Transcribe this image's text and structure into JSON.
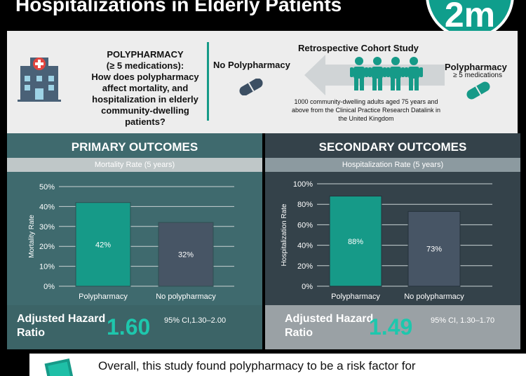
{
  "header": {
    "title": "Hospitalizations in Elderly Patients",
    "logo_text": "2m"
  },
  "intro": {
    "question_heading": "POLYPHARMACY\n(≥ 5 medications):",
    "question_body": "How does polypharmacy affect mortality, and hospitalization in elderly community-dwelling patients?",
    "study_title": "Retrospective Cohort Study",
    "no_poly_label": "No Polypharmacy",
    "poly_label": "Polypharmacy",
    "poly_sublabel": "≥ 5 medications",
    "description": "1000 community-dwelling adults aged 75 years and above from the Clinical Practice Research Datalink in the United Kingdom"
  },
  "primary": {
    "title": "PRIMARY OUTCOMES",
    "subtitle": "Mortality Rate (5 years)",
    "ahr_label": "Adjusted Hazard Ratio",
    "ahr_value": "1.60",
    "ci": "95% CI,1.30–2.00"
  },
  "secondary": {
    "title": "SECONDARY OUTCOMES",
    "subtitle": "Hospitalization Rate (5 years)",
    "ahr_label": "Adjusted Hazard Ratio",
    "ahr_value": "1.49",
    "ci": "95% CI, 1.30–1.70"
  },
  "conclusion": {
    "text": "Overall, this study found polypharmacy to be a risk factor for"
  },
  "colors": {
    "teal": "#169a88",
    "slate": "#475565",
    "accent": "#1ec7ad"
  },
  "chart_data": [
    {
      "type": "bar",
      "title": "Mortality Rate (5 years)",
      "ylabel": "Mortality Rate",
      "xlabel": "",
      "categories": [
        "Polypharmacy",
        "No polypharmacy"
      ],
      "values": [
        42,
        32
      ],
      "value_labels": [
        "42%",
        "32%"
      ],
      "ylim": [
        0,
        50
      ],
      "yticks": [
        "0%",
        "10%",
        "20%",
        "30%",
        "40%",
        "50%"
      ],
      "grid": true
    },
    {
      "type": "bar",
      "title": "Hospitalization Rate (5 years)",
      "ylabel": "Hospitalization Rate",
      "xlabel": "",
      "categories": [
        "Polypharmacy",
        "No polypharmacy"
      ],
      "values": [
        88,
        73
      ],
      "value_labels": [
        "88%",
        "73%"
      ],
      "ylim": [
        0,
        100
      ],
      "yticks": [
        "0%",
        "20%",
        "40%",
        "60%",
        "80%",
        "100%"
      ],
      "grid": true
    }
  ]
}
